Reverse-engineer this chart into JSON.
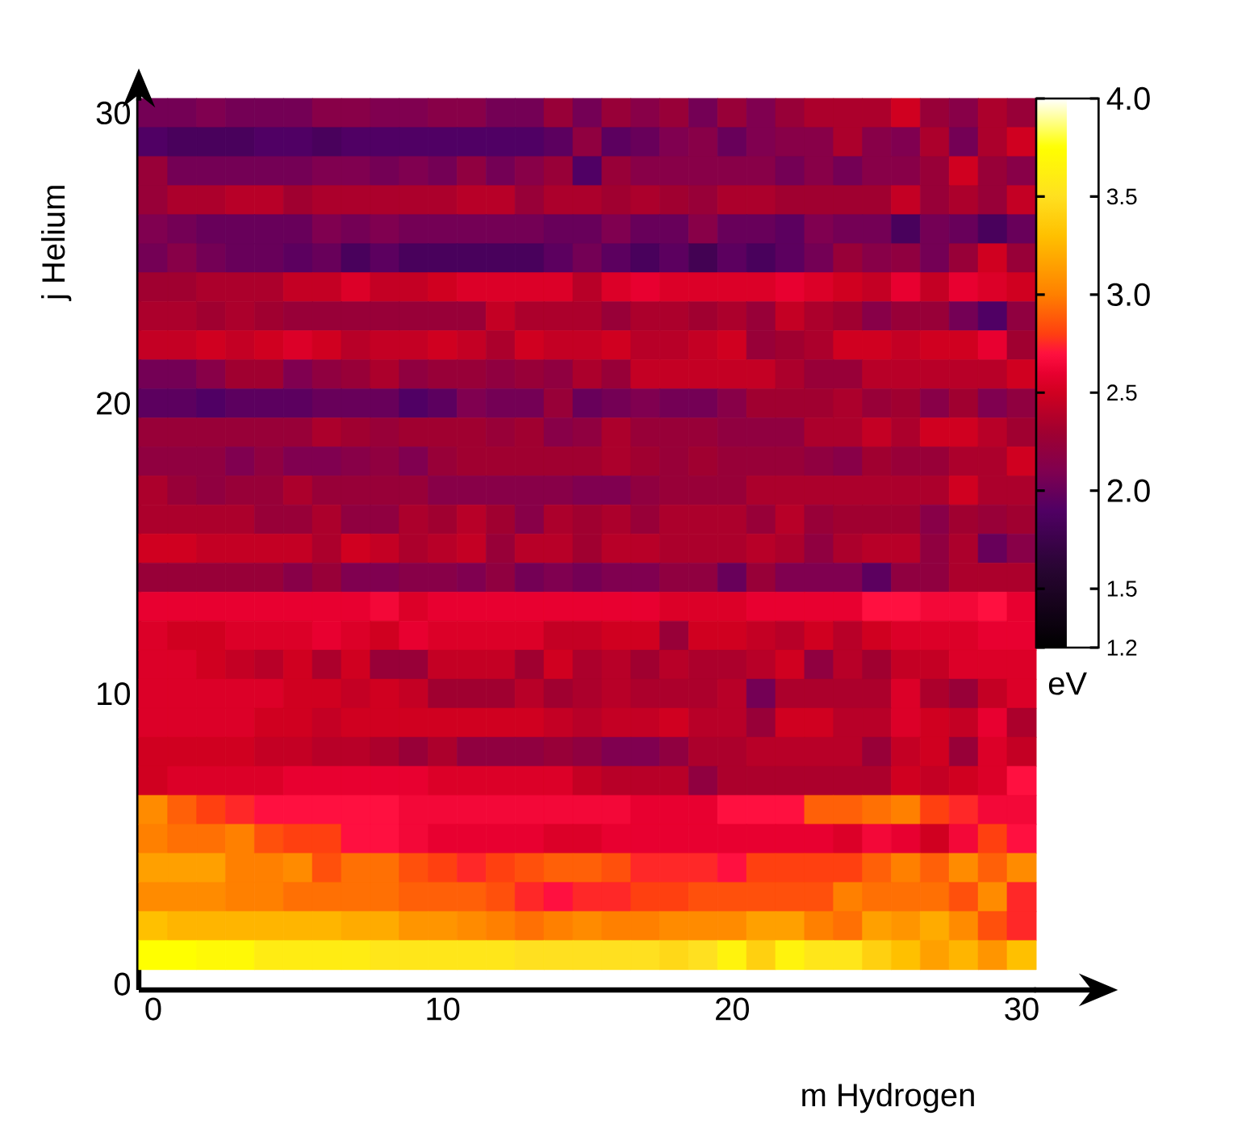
{
  "chart_data": {
    "type": "heatmap",
    "xlabel": "m  Hydrogen",
    "ylabel": "j  Helium",
    "clabel": "eV",
    "x": [
      0,
      1,
      2,
      3,
      4,
      5,
      6,
      7,
      8,
      9,
      10,
      11,
      12,
      13,
      14,
      15,
      16,
      17,
      18,
      19,
      20,
      21,
      22,
      23,
      24,
      25,
      26,
      27,
      28,
      29,
      30
    ],
    "y": [
      30,
      29,
      28,
      27,
      26,
      25,
      24,
      23,
      22,
      21,
      20,
      19,
      18,
      17,
      16,
      15,
      14,
      13,
      12,
      11,
      10,
      9,
      8,
      7,
      6,
      5,
      4,
      3,
      2,
      1
    ],
    "xlim": [
      -0.5,
      30.5
    ],
    "ylim": [
      -0.2,
      30.5
    ],
    "xticks": [
      0,
      10,
      20,
      30
    ],
    "yticks": [
      0,
      10,
      20,
      30
    ],
    "clim": [
      1.2,
      4.0
    ],
    "cticks": [
      1.2,
      1.5,
      {
        "value": 2,
        "label": "2.0"
      },
      2.5,
      {
        "value": 3,
        "label": "3.0"
      },
      3.5,
      {
        "value": 4,
        "label": "4.0"
      }
    ],
    "cells": [
      [
        2.05,
        2.05,
        2.1,
        2.05,
        2.05,
        2.05,
        2.15,
        2.15,
        2.1,
        2.1,
        2.15,
        2.15,
        2.05,
        2.05,
        2.25,
        2.05,
        2.25,
        2.15,
        2.25,
        2.05,
        2.25,
        2.1,
        2.25,
        2.35,
        2.35,
        2.35,
        2.5,
        2.25,
        2.15,
        2.35,
        2.25
      ],
      [
        1.9,
        1.85,
        1.85,
        1.85,
        1.9,
        1.9,
        1.85,
        1.9,
        1.9,
        1.9,
        1.9,
        1.9,
        1.9,
        1.9,
        1.95,
        2.2,
        1.95,
        2.0,
        2.1,
        2.15,
        2.0,
        2.1,
        2.15,
        2.15,
        2.35,
        2.15,
        2.1,
        2.35,
        2.05,
        2.35,
        2.5
      ],
      [
        2.25,
        2.05,
        2.05,
        2.05,
        2.05,
        2.05,
        2.1,
        2.1,
        2.05,
        2.1,
        2.05,
        2.2,
        2.05,
        2.15,
        2.25,
        1.9,
        2.25,
        2.15,
        2.15,
        2.15,
        2.15,
        2.15,
        2.05,
        2.15,
        2.05,
        2.15,
        2.15,
        2.25,
        2.5,
        2.25,
        2.15
      ],
      [
        2.25,
        2.35,
        2.35,
        2.4,
        2.4,
        2.3,
        2.35,
        2.35,
        2.35,
        2.35,
        2.35,
        2.4,
        2.4,
        2.25,
        2.35,
        2.35,
        2.3,
        2.35,
        2.3,
        2.25,
        2.35,
        2.35,
        2.3,
        2.3,
        2.3,
        2.3,
        2.45,
        2.25,
        2.35,
        2.25,
        2.45
      ],
      [
        2.1,
        2.05,
        2.0,
        2.0,
        2.0,
        2.0,
        2.1,
        2.05,
        2.1,
        2.05,
        2.05,
        2.05,
        2.05,
        2.05,
        2.0,
        2.0,
        2.1,
        2.0,
        2.0,
        2.15,
        2.0,
        2.0,
        1.95,
        2.1,
        2.05,
        2.05,
        1.85,
        2.05,
        2.0,
        1.85,
        2.0
      ],
      [
        2.05,
        2.15,
        2.05,
        2.0,
        2.0,
        1.95,
        2.0,
        1.85,
        1.95,
        1.85,
        1.85,
        1.85,
        1.85,
        1.85,
        1.95,
        2.05,
        1.95,
        1.85,
        1.95,
        1.8,
        1.95,
        1.85,
        1.95,
        2.05,
        2.25,
        2.15,
        2.2,
        2.05,
        2.25,
        2.5,
        2.25
      ],
      [
        2.3,
        2.3,
        2.35,
        2.35,
        2.35,
        2.45,
        2.45,
        2.55,
        2.45,
        2.45,
        2.5,
        2.55,
        2.55,
        2.55,
        2.55,
        2.4,
        2.55,
        2.6,
        2.55,
        2.55,
        2.55,
        2.55,
        2.6,
        2.55,
        2.5,
        2.45,
        2.6,
        2.45,
        2.6,
        2.55,
        2.5
      ],
      [
        2.35,
        2.35,
        2.3,
        2.35,
        2.3,
        2.25,
        2.25,
        2.25,
        2.25,
        2.25,
        2.25,
        2.25,
        2.45,
        2.35,
        2.35,
        2.35,
        2.25,
        2.35,
        2.35,
        2.3,
        2.35,
        2.25,
        2.45,
        2.35,
        2.3,
        2.15,
        2.25,
        2.25,
        2.05,
        1.9,
        2.2
      ],
      [
        2.45,
        2.45,
        2.5,
        2.45,
        2.5,
        2.55,
        2.5,
        2.4,
        2.45,
        2.45,
        2.5,
        2.45,
        2.35,
        2.5,
        2.45,
        2.45,
        2.5,
        2.4,
        2.4,
        2.45,
        2.5,
        2.25,
        2.3,
        2.35,
        2.5,
        2.5,
        2.45,
        2.5,
        2.5,
        2.6,
        2.3
      ],
      [
        2.05,
        2.05,
        2.15,
        2.3,
        2.3,
        2.1,
        2.2,
        2.25,
        2.35,
        2.2,
        2.25,
        2.25,
        2.2,
        2.25,
        2.2,
        2.35,
        2.25,
        2.45,
        2.45,
        2.45,
        2.45,
        2.45,
        2.35,
        2.25,
        2.25,
        2.4,
        2.4,
        2.4,
        2.4,
        2.4,
        2.5
      ],
      [
        1.95,
        1.95,
        1.9,
        1.95,
        1.95,
        1.95,
        2.0,
        2.0,
        2.0,
        1.9,
        1.95,
        2.1,
        2.05,
        2.05,
        2.25,
        2.0,
        2.05,
        2.1,
        2.05,
        2.05,
        2.15,
        2.3,
        2.3,
        2.3,
        2.35,
        2.25,
        2.3,
        2.15,
        2.3,
        2.1,
        2.2
      ],
      [
        2.25,
        2.25,
        2.25,
        2.25,
        2.25,
        2.25,
        2.35,
        2.3,
        2.25,
        2.3,
        2.3,
        2.3,
        2.25,
        2.3,
        2.15,
        2.2,
        2.35,
        2.25,
        2.25,
        2.25,
        2.2,
        2.2,
        2.2,
        2.35,
        2.35,
        2.45,
        2.35,
        2.5,
        2.5,
        2.4,
        2.3
      ],
      [
        2.2,
        2.2,
        2.2,
        2.1,
        2.2,
        2.1,
        2.1,
        2.15,
        2.2,
        2.1,
        2.25,
        2.3,
        2.3,
        2.3,
        2.3,
        2.3,
        2.35,
        2.3,
        2.25,
        2.3,
        2.25,
        2.25,
        2.25,
        2.2,
        2.15,
        2.3,
        2.25,
        2.25,
        2.35,
        2.35,
        2.5
      ],
      [
        2.35,
        2.25,
        2.2,
        2.25,
        2.25,
        2.35,
        2.25,
        2.25,
        2.25,
        2.25,
        2.15,
        2.15,
        2.15,
        2.15,
        2.15,
        2.1,
        2.1,
        2.2,
        2.25,
        2.25,
        2.25,
        2.35,
        2.35,
        2.35,
        2.35,
        2.35,
        2.35,
        2.35,
        2.5,
        2.35,
        2.35
      ],
      [
        2.35,
        2.35,
        2.35,
        2.35,
        2.25,
        2.25,
        2.35,
        2.2,
        2.2,
        2.35,
        2.3,
        2.4,
        2.3,
        2.15,
        2.35,
        2.3,
        2.35,
        2.25,
        2.35,
        2.35,
        2.35,
        2.25,
        2.4,
        2.25,
        2.3,
        2.3,
        2.3,
        2.15,
        2.3,
        2.25,
        2.3
      ],
      [
        2.5,
        2.5,
        2.45,
        2.45,
        2.45,
        2.45,
        2.35,
        2.5,
        2.45,
        2.35,
        2.4,
        2.45,
        2.25,
        2.4,
        2.4,
        2.3,
        2.4,
        2.4,
        2.35,
        2.35,
        2.35,
        2.4,
        2.35,
        2.2,
        2.35,
        2.4,
        2.4,
        2.2,
        2.35,
        2.0,
        2.15
      ],
      [
        2.25,
        2.25,
        2.25,
        2.25,
        2.25,
        2.15,
        2.25,
        2.1,
        2.1,
        2.15,
        2.15,
        2.1,
        2.2,
        2.05,
        2.1,
        2.05,
        2.1,
        2.1,
        2.2,
        2.2,
        2.0,
        2.25,
        2.1,
        2.1,
        2.1,
        1.95,
        2.2,
        2.2,
        2.35,
        2.35,
        2.35
      ],
      [
        2.6,
        2.6,
        2.6,
        2.6,
        2.6,
        2.6,
        2.6,
        2.6,
        2.65,
        2.55,
        2.6,
        2.6,
        2.6,
        2.6,
        2.6,
        2.6,
        2.6,
        2.6,
        2.55,
        2.55,
        2.55,
        2.6,
        2.6,
        2.6,
        2.6,
        2.7,
        2.7,
        2.65,
        2.65,
        2.7,
        2.6
      ],
      [
        2.55,
        2.5,
        2.5,
        2.55,
        2.55,
        2.55,
        2.6,
        2.55,
        2.5,
        2.6,
        2.55,
        2.55,
        2.55,
        2.55,
        2.45,
        2.45,
        2.5,
        2.5,
        2.25,
        2.5,
        2.5,
        2.45,
        2.4,
        2.5,
        2.4,
        2.5,
        2.55,
        2.55,
        2.55,
        2.6,
        2.6
      ],
      [
        2.55,
        2.55,
        2.5,
        2.45,
        2.4,
        2.5,
        2.35,
        2.5,
        2.25,
        2.25,
        2.45,
        2.45,
        2.45,
        2.3,
        2.5,
        2.35,
        2.4,
        2.3,
        2.4,
        2.35,
        2.35,
        2.4,
        2.5,
        2.2,
        2.4,
        2.3,
        2.45,
        2.45,
        2.55,
        2.55,
        2.55
      ],
      [
        2.55,
        2.55,
        2.55,
        2.55,
        2.55,
        2.5,
        2.5,
        2.45,
        2.5,
        2.45,
        2.3,
        2.3,
        2.3,
        2.4,
        2.3,
        2.35,
        2.4,
        2.35,
        2.35,
        2.35,
        2.4,
        2.05,
        2.35,
        2.35,
        2.35,
        2.35,
        2.55,
        2.35,
        2.25,
        2.45,
        2.55
      ],
      [
        2.55,
        2.55,
        2.55,
        2.55,
        2.5,
        2.5,
        2.45,
        2.5,
        2.5,
        2.5,
        2.5,
        2.5,
        2.5,
        2.5,
        2.45,
        2.4,
        2.45,
        2.45,
        2.5,
        2.4,
        2.4,
        2.25,
        2.5,
        2.5,
        2.4,
        2.4,
        2.55,
        2.5,
        2.45,
        2.6,
        2.35
      ],
      [
        2.5,
        2.5,
        2.5,
        2.5,
        2.45,
        2.45,
        2.4,
        2.4,
        2.35,
        2.25,
        2.35,
        2.2,
        2.2,
        2.2,
        2.25,
        2.2,
        2.1,
        2.1,
        2.2,
        2.35,
        2.35,
        2.4,
        2.4,
        2.4,
        2.4,
        2.25,
        2.45,
        2.5,
        2.25,
        2.55,
        2.45
      ],
      [
        2.5,
        2.55,
        2.55,
        2.55,
        2.55,
        2.6,
        2.6,
        2.6,
        2.6,
        2.6,
        2.55,
        2.55,
        2.55,
        2.55,
        2.55,
        2.45,
        2.4,
        2.4,
        2.4,
        2.2,
        2.35,
        2.35,
        2.35,
        2.35,
        2.35,
        2.35,
        2.5,
        2.45,
        2.5,
        2.55,
        2.7
      ],
      [
        3.05,
        2.9,
        2.8,
        2.75,
        2.7,
        2.7,
        2.7,
        2.7,
        2.7,
        2.65,
        2.65,
        2.65,
        2.65,
        2.65,
        2.65,
        2.65,
        2.65,
        2.6,
        2.6,
        2.6,
        2.7,
        2.7,
        2.7,
        2.9,
        2.9,
        2.95,
        3.0,
        2.8,
        2.75,
        2.65,
        2.65
      ],
      [
        3.0,
        2.95,
        2.95,
        3.0,
        2.85,
        2.8,
        2.8,
        2.7,
        2.7,
        2.65,
        2.6,
        2.6,
        2.6,
        2.6,
        2.55,
        2.55,
        2.6,
        2.6,
        2.6,
        2.6,
        2.6,
        2.6,
        2.6,
        2.6,
        2.55,
        2.65,
        2.6,
        2.5,
        2.65,
        2.8,
        2.7
      ],
      [
        3.15,
        3.15,
        3.15,
        3.0,
        3.0,
        3.05,
        2.85,
        2.95,
        2.95,
        2.85,
        2.8,
        2.75,
        2.8,
        2.85,
        2.9,
        2.9,
        2.85,
        2.75,
        2.75,
        2.75,
        2.7,
        2.8,
        2.8,
        2.8,
        2.8,
        2.9,
        3.0,
        2.9,
        3.05,
        2.9,
        3.05
      ],
      [
        3.05,
        3.05,
        3.05,
        3.0,
        3.0,
        2.95,
        2.95,
        2.95,
        2.95,
        2.9,
        2.9,
        2.9,
        2.85,
        2.75,
        2.7,
        2.75,
        2.75,
        2.8,
        2.8,
        2.85,
        2.85,
        2.85,
        2.85,
        2.85,
        3.0,
        2.95,
        2.95,
        2.95,
        2.85,
        3.05,
        2.75
      ],
      [
        3.3,
        3.25,
        3.25,
        3.25,
        3.25,
        3.25,
        3.25,
        3.2,
        3.2,
        3.1,
        3.1,
        3.05,
        3.0,
        2.95,
        3.0,
        3.05,
        3.0,
        3.0,
        3.05,
        3.05,
        3.05,
        3.15,
        3.15,
        3.0,
        2.95,
        3.15,
        3.1,
        3.2,
        3.05,
        2.85,
        2.75
      ],
      [
        3.75,
        3.75,
        3.7,
        3.7,
        3.6,
        3.6,
        3.6,
        3.6,
        3.55,
        3.55,
        3.55,
        3.55,
        3.55,
        3.5,
        3.5,
        3.5,
        3.5,
        3.5,
        3.45,
        3.5,
        3.65,
        3.4,
        3.65,
        3.55,
        3.55,
        3.4,
        3.3,
        3.15,
        3.25,
        3.1,
        3.3
      ]
    ]
  }
}
